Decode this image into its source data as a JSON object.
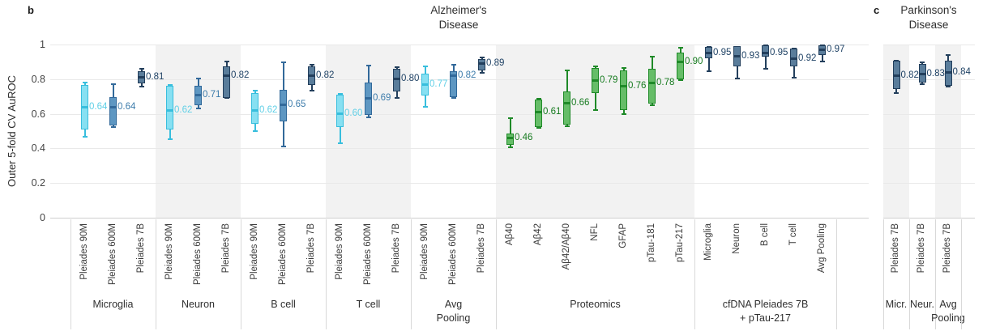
{
  "chart_data": {
    "type": "box",
    "ylabel": "Outer 5-fold CV AuROC",
    "ylim": [
      0,
      1
    ],
    "grid": true,
    "legend": "none",
    "yticks": [
      {
        "v": 0,
        "label": "0"
      },
      {
        "v": 0.2,
        "label": "0.2"
      },
      {
        "v": 0.4,
        "label": "0.4"
      },
      {
        "v": 0.6,
        "label": "0.6"
      },
      {
        "v": 0.8,
        "label": "0.8"
      },
      {
        "v": 1,
        "label": "1"
      }
    ],
    "series_colors": {
      "p90m": {
        "fill": "#87e0f2",
        "stroke": "#38bedd",
        "text": "#5fcfe6"
      },
      "p600m": {
        "fill": "#5e97c2",
        "stroke": "#32699a",
        "text": "#3d7cab"
      },
      "p7b": {
        "fill": "#5a7d9b",
        "stroke": "#233f5c",
        "text": "#1f4265"
      },
      "prot": {
        "fill": "#66bd68",
        "stroke": "#1f8a28",
        "text": "#157a1e"
      }
    },
    "panels": [
      {
        "id": "b",
        "letter": "b",
        "title": "Alzheimer's\nDisease",
        "show_yaxis": true,
        "groups": [
          {
            "label": "Microglia",
            "items": [
              {
                "tick": "Pleiades 90M",
                "series": "p90m",
                "value": "0.64",
                "med": 0.64,
                "q1": 0.51,
                "q3": 0.765,
                "lo": 0.465,
                "hi": 0.785
              },
              {
                "tick": "Pleiades 600M",
                "series": "p600m",
                "value": "0.64",
                "med": 0.64,
                "q1": 0.535,
                "q3": 0.695,
                "lo": 0.525,
                "hi": 0.775
              },
              {
                "tick": "Pleiades 7B",
                "series": "p7b",
                "value": "0.81",
                "med": 0.81,
                "q1": 0.775,
                "q3": 0.845,
                "lo": 0.755,
                "hi": 0.865
              }
            ]
          },
          {
            "label": "Neuron",
            "items": [
              {
                "tick": "Pleiades 90M",
                "series": "p90m",
                "value": "0.62",
                "med": 0.62,
                "q1": 0.51,
                "q3": 0.76,
                "lo": 0.455,
                "hi": 0.77
              },
              {
                "tick": "Pleiades 600M",
                "series": "p600m",
                "value": "0.71",
                "med": 0.71,
                "q1": 0.65,
                "q3": 0.76,
                "lo": 0.63,
                "hi": 0.81
              },
              {
                "tick": "Pleiades 7B",
                "series": "p7b",
                "value": "0.82",
                "med": 0.82,
                "q1": 0.69,
                "q3": 0.875,
                "lo": 0.69,
                "hi": 0.905
              }
            ]
          },
          {
            "label": "B cell",
            "items": [
              {
                "tick": "Pleiades 90M",
                "series": "p90m",
                "value": "0.62",
                "med": 0.62,
                "q1": 0.54,
                "q3": 0.72,
                "lo": 0.5,
                "hi": 0.74
              },
              {
                "tick": "Pleiades 600M",
                "series": "p600m",
                "value": "0.65",
                "med": 0.65,
                "q1": 0.555,
                "q3": 0.74,
                "lo": 0.41,
                "hi": 0.9
              },
              {
                "tick": "Pleiades 7B",
                "series": "p7b",
                "value": "0.82",
                "med": 0.82,
                "q1": 0.765,
                "q3": 0.875,
                "lo": 0.735,
                "hi": 0.89
              }
            ]
          },
          {
            "label": "T cell",
            "items": [
              {
                "tick": "Pleiades 90M",
                "series": "p90m",
                "value": "0.60",
                "med": 0.6,
                "q1": 0.525,
                "q3": 0.71,
                "lo": 0.43,
                "hi": 0.72
              },
              {
                "tick": "Pleiades 600M",
                "series": "p600m",
                "value": "0.69",
                "med": 0.69,
                "q1": 0.595,
                "q3": 0.78,
                "lo": 0.58,
                "hi": 0.885
              },
              {
                "tick": "Pleiades 7B",
                "series": "p7b",
                "value": "0.80",
                "med": 0.8,
                "q1": 0.73,
                "q3": 0.86,
                "lo": 0.69,
                "hi": 0.875
              }
            ]
          },
          {
            "label": "Avg\nPooling",
            "items": [
              {
                "tick": "Pleiades 90M",
                "series": "p90m",
                "value": "0.77",
                "med": 0.77,
                "q1": 0.705,
                "q3": 0.83,
                "lo": 0.64,
                "hi": 0.88
              },
              {
                "tick": "Pleiades 600M",
                "series": "p600m",
                "value": "0.82",
                "med": 0.82,
                "q1": 0.695,
                "q3": 0.845,
                "lo": 0.69,
                "hi": 0.89
              },
              {
                "tick": "Pleiades 7B",
                "series": "p7b",
                "value": "0.89",
                "med": 0.89,
                "q1": 0.85,
                "q3": 0.915,
                "lo": 0.835,
                "hi": 0.93
              }
            ]
          },
          {
            "label": "Proteomics",
            "items": [
              {
                "tick": "Aβ40",
                "series": "prot",
                "value": "0.46",
                "med": 0.46,
                "q1": 0.42,
                "q3": 0.485,
                "lo": 0.405,
                "hi": 0.58
              },
              {
                "tick": "Aβ42",
                "series": "prot",
                "value": "0.61",
                "med": 0.61,
                "q1": 0.525,
                "q3": 0.68,
                "lo": 0.52,
                "hi": 0.69
              },
              {
                "tick": "Aβ42/Aβ40",
                "series": "prot",
                "value": "0.66",
                "med": 0.66,
                "q1": 0.535,
                "q3": 0.73,
                "lo": 0.53,
                "hi": 0.855
              },
              {
                "tick": "NFL",
                "series": "prot",
                "value": "0.79",
                "med": 0.79,
                "q1": 0.72,
                "q3": 0.865,
                "lo": 0.62,
                "hi": 0.88
              },
              {
                "tick": "GFAP",
                "series": "prot",
                "value": "0.76",
                "med": 0.76,
                "q1": 0.62,
                "q3": 0.85,
                "lo": 0.6,
                "hi": 0.87
              },
              {
                "tick": "pTau-181",
                "series": "prot",
                "value": "0.78",
                "med": 0.78,
                "q1": 0.66,
                "q3": 0.86,
                "lo": 0.65,
                "hi": 0.935
              },
              {
                "tick": "pTau-217",
                "series": "prot",
                "value": "0.90",
                "med": 0.9,
                "q1": 0.8,
                "q3": 0.955,
                "lo": 0.795,
                "hi": 0.985
              }
            ]
          },
          {
            "label": "cfDNA Pleiades 7B\n+ pTau-217",
            "items": [
              {
                "tick": "Microglia",
                "series": "p7b",
                "value": "0.95",
                "med": 0.95,
                "q1": 0.92,
                "q3": 0.985,
                "lo": 0.845,
                "hi": 0.99
              },
              {
                "tick": "Neuron",
                "series": "p7b",
                "value": "0.93",
                "med": 0.93,
                "q1": 0.875,
                "q3": 0.99,
                "lo": 0.805,
                "hi": 0.99
              },
              {
                "tick": "B cell",
                "series": "p7b",
                "value": "0.95",
                "med": 0.95,
                "q1": 0.93,
                "q3": 0.995,
                "lo": 0.86,
                "hi": 1.0
              },
              {
                "tick": "T cell",
                "series": "p7b",
                "value": "0.92",
                "med": 0.92,
                "q1": 0.875,
                "q3": 0.975,
                "lo": 0.81,
                "hi": 0.98
              },
              {
                "tick": "Avg Pooling",
                "series": "p7b",
                "value": "0.97",
                "med": 0.97,
                "q1": 0.94,
                "q3": 0.995,
                "lo": 0.9,
                "hi": 1.0
              }
            ]
          }
        ]
      },
      {
        "id": "c",
        "letter": "c",
        "title": "Parkinson's\nDisease",
        "show_yaxis": false,
        "groups": [
          {
            "label": "Micr.",
            "items": [
              {
                "tick": "Pleiades 7B",
                "series": "p7b",
                "value": "0.82",
                "med": 0.82,
                "q1": 0.745,
                "q3": 0.905,
                "lo": 0.72,
                "hi": 0.91
              }
            ]
          },
          {
            "label": "Neur.",
            "items": [
              {
                "tick": "Pleiades 7B",
                "series": "p7b",
                "value": "0.83",
                "med": 0.83,
                "q1": 0.78,
                "q3": 0.89,
                "lo": 0.77,
                "hi": 0.9
              }
            ]
          },
          {
            "label": "Avg\nPooling",
            "items": [
              {
                "tick": "Pleiades 7B",
                "series": "p7b",
                "value": "0.84",
                "med": 0.84,
                "q1": 0.76,
                "q3": 0.905,
                "lo": 0.755,
                "hi": 0.945
              }
            ]
          }
        ]
      }
    ]
  }
}
